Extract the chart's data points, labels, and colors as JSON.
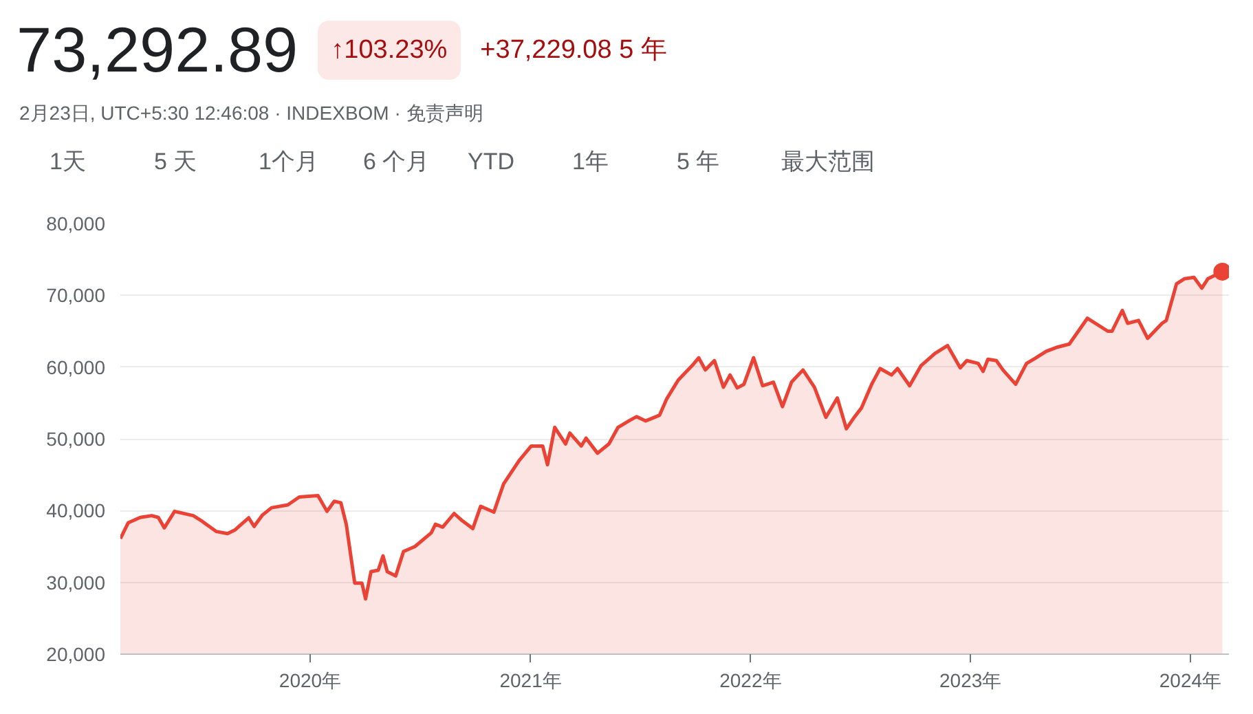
{
  "chart_data": {
    "type": "area",
    "title": "73,292.89",
    "subtitle": "2月23日, UTC+5:30 12:46:08 · INDEXBOM · 免责声明",
    "annotations": [
      "↑103.23%",
      "+37,229.08 5 年",
      "1天",
      "5 天",
      "1个月",
      "6 个月",
      "YTD",
      "1年",
      "5 年",
      "最大范围"
    ],
    "xlim": [
      "2019-02-20",
      "2024-03-05"
    ],
    "xticks": [
      {
        "value": "2020-01-01",
        "label": "2020年"
      },
      {
        "value": "2021-01-01",
        "label": "2021年"
      },
      {
        "value": "2022-01-01",
        "label": "2022年"
      },
      {
        "value": "2023-01-01",
        "label": "2023年"
      },
      {
        "value": "2024-01-01",
        "label": "2024年"
      }
    ],
    "ylim": [
      20000,
      80000
    ],
    "yticks": [
      {
        "value": 20000,
        "label": "20,000"
      },
      {
        "value": 30000,
        "label": "30,000"
      },
      {
        "value": 40000,
        "label": "40,000"
      },
      {
        "value": 50000,
        "label": "50,000"
      },
      {
        "value": 60000,
        "label": "60,000"
      },
      {
        "value": 70000,
        "label": "70,000"
      },
      {
        "value": 80000,
        "label": "80,000"
      }
    ],
    "grid": "y",
    "series": [
      {
        "color": "#ea4335",
        "x": [
          "2019-02-20",
          "2019-03-05",
          "2019-03-25",
          "2019-04-13",
          "2019-04-24",
          "2019-05-04",
          "2019-05-21",
          "2019-06-21",
          "2019-07-06",
          "2019-07-29",
          "2019-08-17",
          "2019-08-29",
          "2019-09-21",
          "2019-09-30",
          "2019-10-14",
          "2019-10-29",
          "2019-11-25",
          "2019-12-14",
          "2020-01-14",
          "2020-01-29",
          "2020-02-10",
          "2020-02-21",
          "2020-03-01",
          "2020-03-15",
          "2020-03-27",
          "2020-04-02",
          "2020-04-11",
          "2020-04-23",
          "2020-05-01",
          "2020-05-08",
          "2020-05-22",
          "2020-06-04",
          "2020-06-23",
          "2020-07-20",
          "2020-07-27",
          "2020-08-08",
          "2020-08-27",
          "2020-09-08",
          "2020-09-27",
          "2020-10-10",
          "2020-11-01",
          "2020-11-17",
          "2020-12-13",
          "2021-01-02",
          "2021-01-21",
          "2021-01-29",
          "2021-02-10",
          "2021-02-28",
          "2021-03-07",
          "2021-03-26",
          "2021-04-03",
          "2021-04-22",
          "2021-05-11",
          "2021-05-26",
          "2021-06-15",
          "2021-06-26",
          "2021-07-11",
          "2021-08-03",
          "2021-08-15",
          "2021-09-03",
          "2021-09-26",
          "2021-10-07",
          "2021-10-18",
          "2021-11-02",
          "2021-11-17",
          "2021-11-28",
          "2021-12-10",
          "2021-12-21",
          "2022-01-06",
          "2022-01-21",
          "2022-02-08",
          "2022-02-23",
          "2022-03-10",
          "2022-03-29",
          "2022-04-17",
          "2022-05-06",
          "2022-05-25",
          "2022-06-09",
          "2022-06-22",
          "2022-07-04",
          "2022-07-21",
          "2022-08-04",
          "2022-08-23",
          "2022-09-02",
          "2022-09-22",
          "2022-10-11",
          "2022-11-03",
          "2022-11-24",
          "2022-12-15",
          "2022-12-26",
          "2023-01-14",
          "2023-01-22",
          "2023-01-30",
          "2023-02-13",
          "2023-02-24",
          "2023-03-17",
          "2023-04-04",
          "2023-04-18",
          "2023-05-07",
          "2023-05-26",
          "2023-06-14",
          "2023-06-29",
          "2023-07-14",
          "2023-08-17",
          "2023-08-24",
          "2023-09-10",
          "2023-09-19",
          "2023-10-07",
          "2023-10-22",
          "2023-11-15",
          "2023-11-22",
          "2023-12-09",
          "2023-12-22",
          "2024-01-07",
          "2024-01-20",
          "2024-01-30",
          "2024-02-23"
        ],
        "values": [
          36100,
          38300,
          39050,
          39300,
          39050,
          37600,
          39900,
          39300,
          38500,
          37100,
          36800,
          37300,
          39000,
          37800,
          39400,
          40400,
          40800,
          41900,
          42100,
          39900,
          41300,
          41100,
          38100,
          29900,
          29900,
          27700,
          31500,
          31700,
          33700,
          31500,
          30900,
          34300,
          35000,
          36900,
          38100,
          37700,
          39600,
          38700,
          37500,
          40600,
          39800,
          43700,
          47000,
          49000,
          49000,
          46400,
          51600,
          49300,
          50800,
          49000,
          50100,
          48000,
          49300,
          51600,
          52600,
          53100,
          52500,
          53300,
          55600,
          58200,
          60200,
          61300,
          59600,
          60900,
          57200,
          58900,
          57100,
          57600,
          61300,
          57400,
          57900,
          54500,
          57900,
          59600,
          57200,
          53000,
          55700,
          51400,
          53000,
          54300,
          57600,
          59800,
          58900,
          59800,
          57400,
          60200,
          61900,
          63000,
          59900,
          60900,
          60500,
          59400,
          61100,
          60900,
          59600,
          57600,
          60500,
          61200,
          62200,
          62800,
          63200,
          65000,
          66800,
          65000,
          65000,
          67900,
          66100,
          66500,
          64000,
          66100,
          66500,
          71600,
          72300,
          72500,
          71000,
          72300,
          73300
        ]
      },
      {
        "type": "scatter",
        "marker": "circle",
        "color": "#ea4335",
        "x": [
          "2024-02-23"
        ],
        "values": [
          73300
        ]
      }
    ]
  }
}
